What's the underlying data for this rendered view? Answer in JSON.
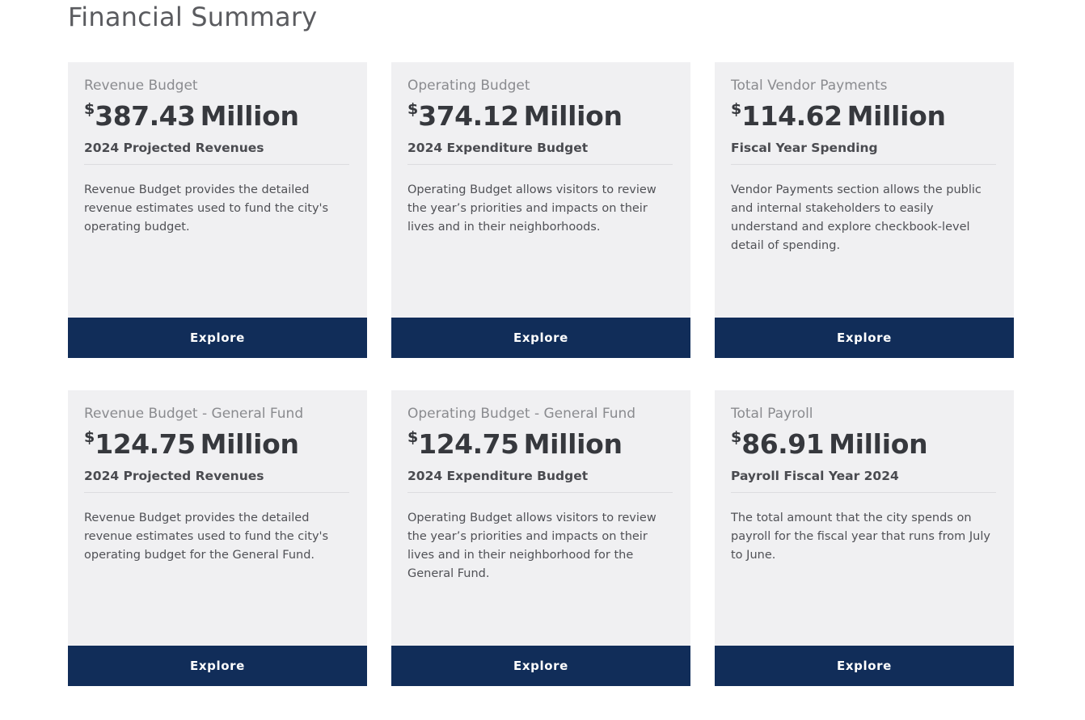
{
  "page": {
    "title": "Financial Summary"
  },
  "cards": [
    {
      "title": "Revenue Budget",
      "currency": "$",
      "value": "387.43",
      "unit": "Million",
      "subtitle": "2024 Projected Revenues",
      "description": "Revenue Budget provides the detailed revenue estimates used to fund the city's operating budget.",
      "button_label": "Explore"
    },
    {
      "title": "Operating Budget",
      "currency": "$",
      "value": "374.12",
      "unit": "Million",
      "subtitle": "2024 Expenditure Budget",
      "description": "Operating Budget allows visitors to review the year’s priorities and impacts on their lives and in their neighborhoods.",
      "button_label": "Explore"
    },
    {
      "title": "Total Vendor Payments",
      "currency": "$",
      "value": "114.62",
      "unit": "Million",
      "subtitle": "Fiscal Year Spending",
      "description": "Vendor Payments section allows the public and internal stakeholders to easily understand and explore checkbook-level detail of spending.",
      "button_label": "Explore"
    },
    {
      "title": "Revenue Budget - General Fund",
      "currency": "$",
      "value": "124.75",
      "unit": "Million",
      "subtitle": "2024 Projected Revenues",
      "description": "Revenue Budget provides the detailed revenue estimates used to fund the city's operating budget for the General Fund.",
      "button_label": "Explore"
    },
    {
      "title": "Operating Budget - General Fund",
      "currency": "$",
      "value": "124.75",
      "unit": "Million",
      "subtitle": "2024 Expenditure Budget",
      "description": "Operating Budget allows visitors to review the year’s priorities and impacts on their lives and in their neighborhood for the General Fund.",
      "button_label": "Explore"
    },
    {
      "title": "Total Payroll",
      "currency": "$",
      "value": "86.91",
      "unit": "Million",
      "subtitle": "Payroll Fiscal Year 2024",
      "description": "The total amount that the city spends on payroll for the fiscal year that runs from July to June.",
      "button_label": "Explore"
    }
  ]
}
